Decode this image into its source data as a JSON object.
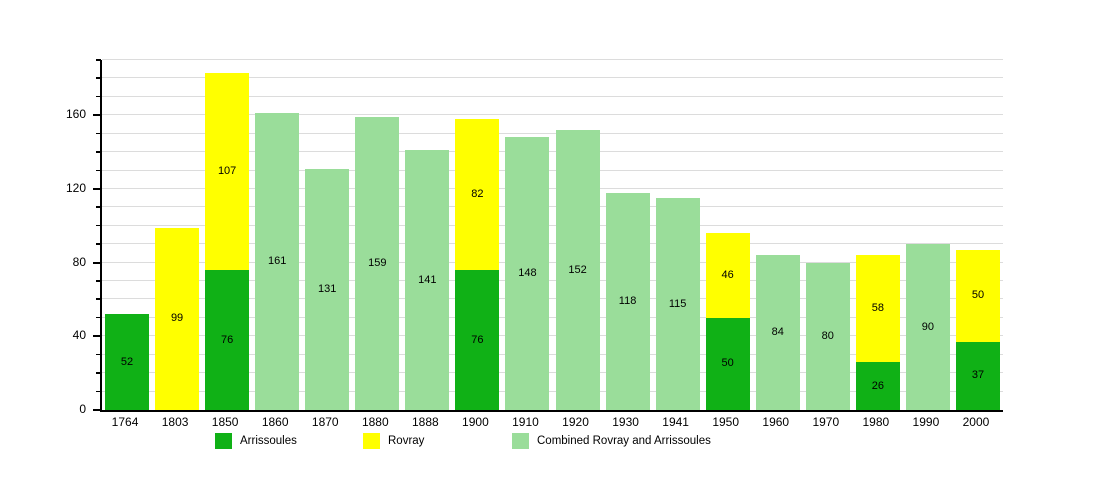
{
  "chart_data": {
    "type": "bar",
    "stacked": true,
    "title": "",
    "xlabel": "",
    "ylabel": "",
    "categories": [
      "1764",
      "1803",
      "1850",
      "1860",
      "1870",
      "1880",
      "1888",
      "1900",
      "1910",
      "1920",
      "1930",
      "1941",
      "1950",
      "1960",
      "1970",
      "1980",
      "1990",
      "2000"
    ],
    "series": [
      {
        "name": "Arrissoules",
        "color": "#10b116",
        "values": [
          52,
          null,
          76,
          null,
          null,
          null,
          null,
          76,
          null,
          null,
          null,
          null,
          50,
          null,
          null,
          26,
          null,
          37
        ]
      },
      {
        "name": "Rovray",
        "color": "#ffff00",
        "values": [
          null,
          99,
          107,
          null,
          null,
          null,
          null,
          82,
          null,
          null,
          null,
          null,
          46,
          null,
          null,
          58,
          null,
          50
        ]
      },
      {
        "name": "Combined Rovray and Arrissoules",
        "color": "#9add9a",
        "values": [
          null,
          null,
          null,
          161,
          131,
          159,
          141,
          null,
          148,
          152,
          118,
          115,
          null,
          84,
          80,
          null,
          90,
          null
        ]
      }
    ],
    "totals": [
      52,
      99,
      183,
      161,
      131,
      159,
      141,
      158,
      148,
      152,
      118,
      115,
      96,
      84,
      80,
      84,
      90,
      87
    ],
    "ylim": [
      0,
      190
    ],
    "yticks": [
      0,
      40,
      80,
      120,
      160
    ],
    "minor_grid_step": 10,
    "grid": true,
    "value_labels": true,
    "legend_position": "bottom",
    "colors": {
      "axis": "#000000",
      "grid": "#dcdcdc",
      "text": "#000000"
    }
  }
}
